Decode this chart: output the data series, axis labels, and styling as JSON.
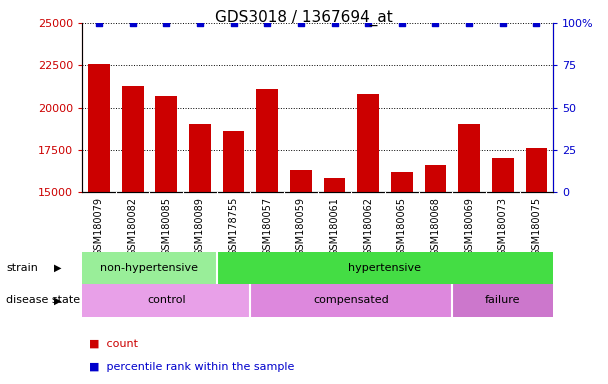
{
  "title": "GDS3018 / 1367694_at",
  "samples": [
    "GSM180079",
    "GSM180082",
    "GSM180085",
    "GSM180089",
    "GSM178755",
    "GSM180057",
    "GSM180059",
    "GSM180061",
    "GSM180062",
    "GSM180065",
    "GSM180068",
    "GSM180069",
    "GSM180073",
    "GSM180075"
  ],
  "counts": [
    22600,
    21300,
    20700,
    19000,
    18600,
    21100,
    16300,
    15800,
    20800,
    16200,
    16600,
    19000,
    17000,
    17600
  ],
  "percentile": [
    100,
    100,
    100,
    100,
    100,
    100,
    100,
    100,
    100,
    100,
    100,
    100,
    100,
    100
  ],
  "ylim_left": [
    15000,
    25000
  ],
  "ylim_right": [
    0,
    100
  ],
  "yticks_left": [
    15000,
    17500,
    20000,
    22500,
    25000
  ],
  "yticks_right": [
    0,
    25,
    50,
    75,
    100
  ],
  "bar_color": "#cc0000",
  "dot_color": "#0000cc",
  "strain_regions": [
    {
      "label": "non-hypertensive",
      "start": 0,
      "end": 4,
      "color": "#99ee99"
    },
    {
      "label": "hypertensive",
      "start": 4,
      "end": 14,
      "color": "#44dd44"
    }
  ],
  "strain_divider": 4,
  "disease_regions": [
    {
      "label": "control",
      "start": 0,
      "end": 5,
      "color": "#e8a0e8"
    },
    {
      "label": "compensated",
      "start": 5,
      "end": 11,
      "color": "#dd88dd"
    },
    {
      "label": "failure",
      "start": 11,
      "end": 14,
      "color": "#cc77cc"
    }
  ],
  "disease_dividers": [
    5,
    11
  ],
  "legend_count_color": "#cc0000",
  "legend_dot_color": "#0000cc",
  "bg_color": "#ffffff",
  "tick_label_color_left": "#cc0000",
  "tick_label_color_right": "#0000cc",
  "xtick_bg": "#d0d0d0",
  "title_fontsize": 11,
  "bar_width": 0.65
}
